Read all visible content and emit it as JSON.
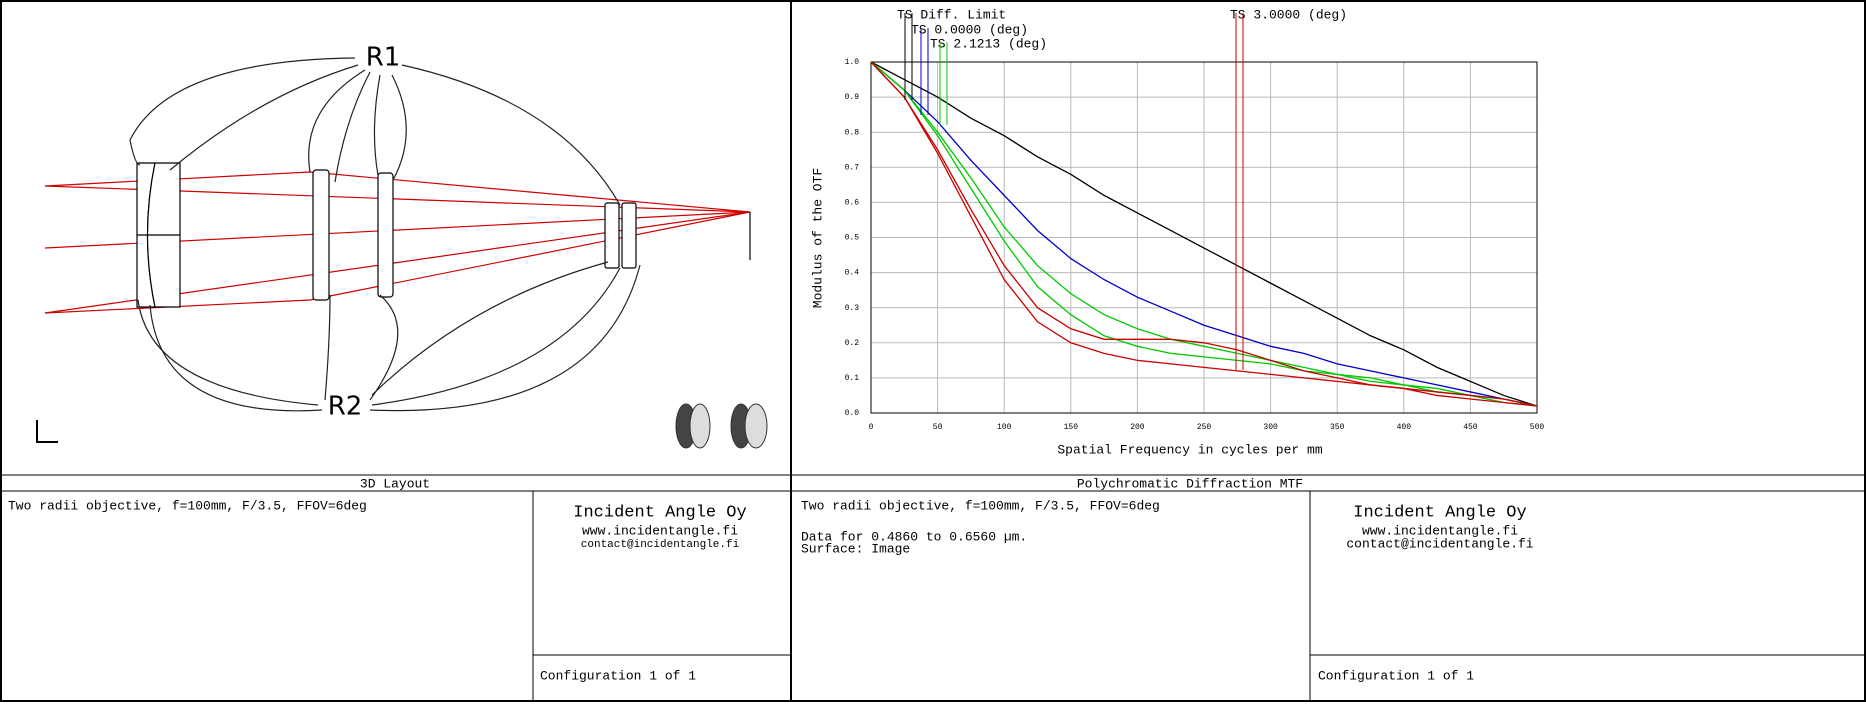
{
  "layout_panel": {
    "labels": [
      "R1",
      "R2"
    ],
    "caption": "3D Layout"
  },
  "chart_data": {
    "type": "line",
    "caption": "Polychromatic Diffraction MTF",
    "xlabel": "Spatial Frequency in cycles per mm",
    "ylabel": "Modulus of the OTF",
    "x": [
      0,
      25,
      50,
      75,
      100,
      125,
      150,
      175,
      200,
      225,
      250,
      275,
      300,
      325,
      350,
      375,
      400,
      425,
      450,
      475,
      500
    ],
    "series": [
      {
        "name": "TS Diff. Limit",
        "color": "#000000",
        "values": [
          1,
          0.95,
          0.9,
          0.84,
          0.79,
          0.73,
          0.68,
          0.62,
          0.57,
          0.52,
          0.47,
          0.42,
          0.37,
          0.32,
          0.27,
          0.22,
          0.18,
          0.13,
          0.09,
          0.05,
          0.02
        ]
      },
      {
        "name": "TS 0.0000 (deg)",
        "color": "#0000c8",
        "values": [
          1,
          0.92,
          0.83,
          0.72,
          0.62,
          0.52,
          0.44,
          0.38,
          0.33,
          0.29,
          0.25,
          0.22,
          0.19,
          0.17,
          0.14,
          0.12,
          0.1,
          0.08,
          0.06,
          0.04,
          0.02
        ]
      },
      {
        "name": "TS 2.1213 (deg)",
        "color": "#00c800",
        "values": [
          1,
          0.92,
          0.8,
          0.67,
          0.53,
          0.42,
          0.34,
          0.28,
          0.24,
          0.21,
          0.19,
          0.17,
          0.15,
          0.13,
          0.11,
          0.1,
          0.08,
          0.07,
          0.05,
          0.04,
          0.02
        ],
        "sagittal": [
          1,
          0.92,
          0.79,
          0.64,
          0.49,
          0.36,
          0.28,
          0.22,
          0.19,
          0.17,
          0.16,
          0.15,
          0.14,
          0.12,
          0.11,
          0.09,
          0.08,
          0.06,
          0.05,
          0.03,
          0.02
        ]
      },
      {
        "name": "TS 3.0000 (deg)",
        "color": "#c80000",
        "values": [
          1,
          0.9,
          0.75,
          0.58,
          0.42,
          0.3,
          0.24,
          0.21,
          0.21,
          0.21,
          0.2,
          0.18,
          0.15,
          0.12,
          0.1,
          0.08,
          0.07,
          0.05,
          0.04,
          0.03,
          0.02
        ],
        "sagittal": [
          1,
          0.9,
          0.74,
          0.56,
          0.38,
          0.26,
          0.2,
          0.17,
          0.15,
          0.14,
          0.13,
          0.12,
          0.11,
          0.1,
          0.09,
          0.08,
          0.07,
          0.06,
          0.05,
          0.04,
          0.02
        ]
      }
    ],
    "xlim": [
      0,
      500
    ],
    "xticks": [
      0,
      50,
      100,
      150,
      200,
      250,
      300,
      350,
      400,
      450,
      500
    ],
    "ylim": [
      0,
      1
    ],
    "yticks": [
      {
        "value": 0,
        "label": "0.0"
      },
      0.1,
      0.2,
      0.3,
      0.4,
      0.5,
      0.6,
      0.7,
      0.8,
      0.9,
      {
        "value": 1,
        "label": "1.0"
      }
    ],
    "grid": true
  },
  "title_blocks": [
    {
      "description": "Two radii objective, f=100mm, F/3.5, FFOV=6deg",
      "company": "Incident Angle Oy",
      "web": "www.incidentangle.fi",
      "email": "contact@incidentangle.fi",
      "configuration": "Configuration 1 of 1"
    },
    {
      "description": "Two radii objective, f=100mm, F/3.5, FFOV=6deg",
      "data_note": "Data for 0.4860 to 0.6560 µm.",
      "surface": "Surface: Image",
      "company": "Incident Angle Oy",
      "web": "www.incidentangle.fi",
      "email": "contact@incidentangle.fi",
      "configuration": "Configuration 1 of 1"
    }
  ]
}
